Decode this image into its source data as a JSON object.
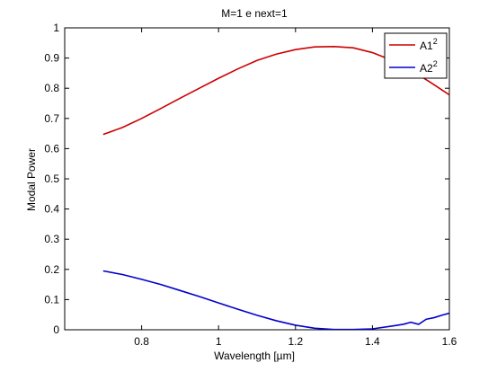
{
  "chart_data": {
    "type": "line",
    "title": "M=1 e next=1",
    "xlabel": "Wavelength [µm]",
    "ylabel": "Modal Power",
    "xlim": [
      0.6,
      1.6
    ],
    "ylim": [
      0,
      1
    ],
    "xticks": [
      0.8,
      1.0,
      1.2,
      1.4,
      1.6
    ],
    "xtick_labels": [
      "0.8",
      "1",
      "1.2",
      "1.4",
      "1.6"
    ],
    "yticks": [
      0,
      0.1,
      0.2,
      0.3,
      0.4,
      0.5,
      0.6,
      0.7,
      0.8,
      0.9,
      1
    ],
    "ytick_labels": [
      "0",
      "0.1",
      "0.2",
      "0.3",
      "0.4",
      "0.5",
      "0.6",
      "0.7",
      "0.8",
      "0.9",
      "1"
    ],
    "grid": false,
    "legend_position": "top-right",
    "series": [
      {
        "name": "A1",
        "name_sup": "2",
        "color": "#cc0000",
        "x": [
          0.7,
          0.75,
          0.8,
          0.85,
          0.9,
          0.95,
          1.0,
          1.05,
          1.1,
          1.15,
          1.2,
          1.25,
          1.3,
          1.35,
          1.4,
          1.45,
          1.5,
          1.55,
          1.6
        ],
        "y": [
          0.647,
          0.67,
          0.7,
          0.733,
          0.767,
          0.8,
          0.833,
          0.864,
          0.892,
          0.913,
          0.928,
          0.937,
          0.938,
          0.934,
          0.918,
          0.893,
          0.86,
          0.82,
          0.778
        ]
      },
      {
        "name": "A2",
        "name_sup": "2",
        "color": "#0000cc",
        "x": [
          0.7,
          0.75,
          0.8,
          0.85,
          0.9,
          0.95,
          1.0,
          1.05,
          1.1,
          1.15,
          1.2,
          1.25,
          1.3,
          1.35,
          1.4,
          1.45,
          1.48,
          1.5,
          1.52,
          1.54,
          1.56,
          1.58,
          1.6
        ],
        "y": [
          0.195,
          0.183,
          0.167,
          0.15,
          0.13,
          0.11,
          0.089,
          0.068,
          0.048,
          0.03,
          0.015,
          0.005,
          0.001,
          0.001,
          0.003,
          0.012,
          0.018,
          0.025,
          0.018,
          0.035,
          0.04,
          0.048,
          0.055
        ]
      }
    ]
  }
}
